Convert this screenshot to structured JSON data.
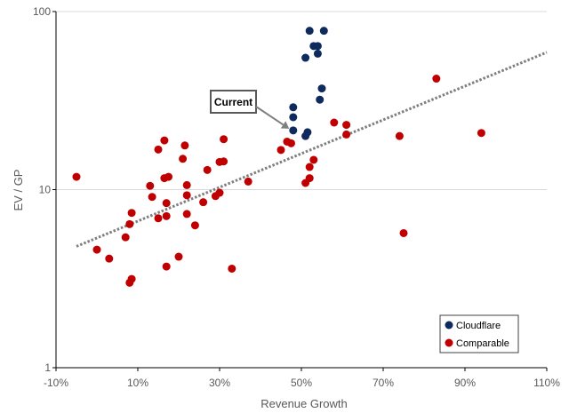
{
  "chart_data": {
    "type": "scatter",
    "xlabel": "Revenue Growth",
    "ylabel": "EV / GP",
    "xlim": [
      -0.1,
      1.1
    ],
    "ylim": [
      1,
      100
    ],
    "yscale": "log",
    "x_ticks": [
      -0.1,
      0.1,
      0.3,
      0.5,
      0.7,
      0.9,
      1.1
    ],
    "x_tick_labels": [
      "-10%",
      "10%",
      "30%",
      "50%",
      "70%",
      "90%",
      "110%"
    ],
    "y_ticks": [
      1,
      10,
      100
    ],
    "y_tick_labels": [
      "1",
      "10",
      "100"
    ],
    "legend_position": "bottom-right",
    "annotation": {
      "text": "Current",
      "points_to": [
        0.47,
        22
      ]
    },
    "trendline": {
      "style": "dotted",
      "color": "#7f7f7f",
      "from": [
        -0.05,
        4.8
      ],
      "to": [
        1.1,
        59
      ]
    },
    "series": [
      {
        "name": "Cloudflare",
        "color": "#0f2a5c",
        "points": [
          [
            0.52,
            78
          ],
          [
            0.555,
            78
          ],
          [
            0.53,
            64
          ],
          [
            0.54,
            64
          ],
          [
            0.54,
            58
          ],
          [
            0.51,
            55
          ],
          [
            0.55,
            37
          ],
          [
            0.545,
            32
          ],
          [
            0.48,
            29
          ],
          [
            0.48,
            25.5
          ],
          [
            0.48,
            21.5
          ],
          [
            0.515,
            21
          ],
          [
            0.51,
            20
          ]
        ]
      },
      {
        "name": "Comparable",
        "color": "#c00000",
        "points": [
          [
            -0.05,
            11.8
          ],
          [
            0.0,
            4.6
          ],
          [
            0.03,
            4.1
          ],
          [
            0.07,
            5.4
          ],
          [
            0.08,
            6.4
          ],
          [
            0.085,
            7.4
          ],
          [
            0.08,
            3.0
          ],
          [
            0.085,
            3.15
          ],
          [
            0.13,
            10.5
          ],
          [
            0.135,
            9.1
          ],
          [
            0.15,
            6.9
          ],
          [
            0.15,
            16.8
          ],
          [
            0.165,
            18.9
          ],
          [
            0.165,
            11.6
          ],
          [
            0.17,
            8.4
          ],
          [
            0.175,
            11.8
          ],
          [
            0.17,
            7.1
          ],
          [
            0.17,
            3.7
          ],
          [
            0.2,
            4.2
          ],
          [
            0.21,
            14.9
          ],
          [
            0.215,
            17.7
          ],
          [
            0.22,
            10.6
          ],
          [
            0.22,
            9.3
          ],
          [
            0.22,
            7.3
          ],
          [
            0.24,
            6.3
          ],
          [
            0.26,
            8.5
          ],
          [
            0.27,
            12.9
          ],
          [
            0.29,
            9.2
          ],
          [
            0.3,
            9.6
          ],
          [
            0.3,
            14.3
          ],
          [
            0.31,
            14.4
          ],
          [
            0.31,
            19.2
          ],
          [
            0.33,
            3.6
          ],
          [
            0.37,
            11.1
          ],
          [
            0.45,
            16.7
          ],
          [
            0.465,
            18.6
          ],
          [
            0.475,
            18.2
          ],
          [
            0.51,
            10.9
          ],
          [
            0.52,
            11.6
          ],
          [
            0.52,
            13.4
          ],
          [
            0.53,
            14.7
          ],
          [
            0.58,
            23.8
          ],
          [
            0.61,
            23.1
          ],
          [
            0.61,
            20.4
          ],
          [
            0.74,
            20.0
          ],
          [
            0.75,
            5.7
          ],
          [
            0.83,
            42
          ],
          [
            0.94,
            20.8
          ]
        ]
      }
    ]
  }
}
